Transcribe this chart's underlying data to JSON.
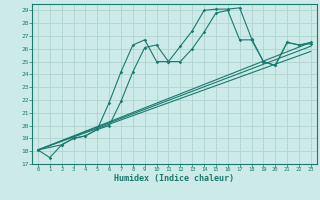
{
  "xlabel": "Humidex (Indice chaleur)",
  "background_color": "#cceae7",
  "line_color": "#1a7a6e",
  "grid_color": "#aacfcc",
  "xlim": [
    -0.5,
    23.5
  ],
  "ylim": [
    17,
    29.5
  ],
  "xticks": [
    0,
    1,
    2,
    3,
    4,
    5,
    6,
    7,
    8,
    9,
    10,
    11,
    12,
    13,
    14,
    15,
    16,
    17,
    18,
    19,
    20,
    21,
    22,
    23
  ],
  "yticks": [
    17,
    18,
    19,
    20,
    21,
    22,
    23,
    24,
    25,
    26,
    27,
    28,
    29
  ],
  "line1_x": [
    0,
    1,
    2,
    3,
    4,
    5,
    6,
    7,
    8,
    9,
    10,
    11,
    12,
    13,
    14,
    15,
    16,
    17,
    18,
    19,
    20,
    21,
    22,
    23
  ],
  "line1_y": [
    18.1,
    17.5,
    18.5,
    19.0,
    19.2,
    19.7,
    21.8,
    24.2,
    26.3,
    26.7,
    25.0,
    25.0,
    26.2,
    27.4,
    29.0,
    29.1,
    29.1,
    29.2,
    26.8,
    25.0,
    24.7,
    26.5,
    26.3,
    26.5
  ],
  "line2_x": [
    0,
    2,
    3,
    4,
    5,
    6,
    7,
    8,
    9,
    10,
    11,
    12,
    13,
    14,
    15,
    16,
    17,
    18,
    19,
    20,
    21,
    22,
    23
  ],
  "line2_y": [
    18.1,
    18.5,
    19.0,
    19.2,
    19.7,
    20.0,
    21.9,
    24.2,
    26.1,
    26.3,
    25.0,
    25.0,
    26.0,
    27.3,
    28.8,
    29.0,
    26.7,
    26.7,
    25.0,
    24.7,
    26.5,
    26.3,
    26.4
  ],
  "line3_x": [
    0,
    23
  ],
  "line3_y": [
    18.1,
    26.5
  ],
  "line4_x": [
    0,
    23
  ],
  "line4_y": [
    18.1,
    26.2
  ],
  "line5_x": [
    0,
    23
  ],
  "line5_y": [
    18.1,
    25.8
  ]
}
